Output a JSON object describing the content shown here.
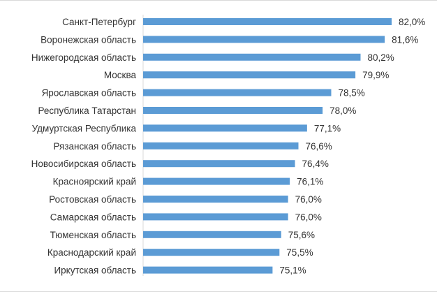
{
  "chart_data": {
    "type": "bar",
    "orientation": "horizontal",
    "categories": [
      "Санкт-Петербург",
      "Воронежская область",
      "Нижегородская область",
      "Москва",
      "Ярославская область",
      "Республика Татарстан",
      "Удмуртская Республика",
      "Рязанская область",
      "Новосибирская область",
      "Красноярский край",
      "Ростовская область",
      "Самарская область",
      "Тюменская область",
      "Краснодарский край",
      "Иркутская область"
    ],
    "values": [
      82.0,
      81.6,
      80.2,
      79.9,
      78.5,
      78.0,
      77.1,
      76.6,
      76.4,
      76.1,
      76.0,
      76.0,
      75.6,
      75.5,
      75.1
    ],
    "value_labels": [
      "82,0%",
      "81,6%",
      "80,2%",
      "79,9%",
      "78,5%",
      "78,0%",
      "77,1%",
      "76,6%",
      "76,4%",
      "76,1%",
      "76,0%",
      "76,0%",
      "75,6%",
      "75,5%",
      "75,1%"
    ],
    "axis_baseline_percent": 67.6,
    "title": "",
    "xlabel": "",
    "ylabel": "",
    "grid": false,
    "legend": "none",
    "bar_color": "#5b9bd5",
    "axis_color": "#d9d9d9",
    "text_color": "#333333"
  }
}
